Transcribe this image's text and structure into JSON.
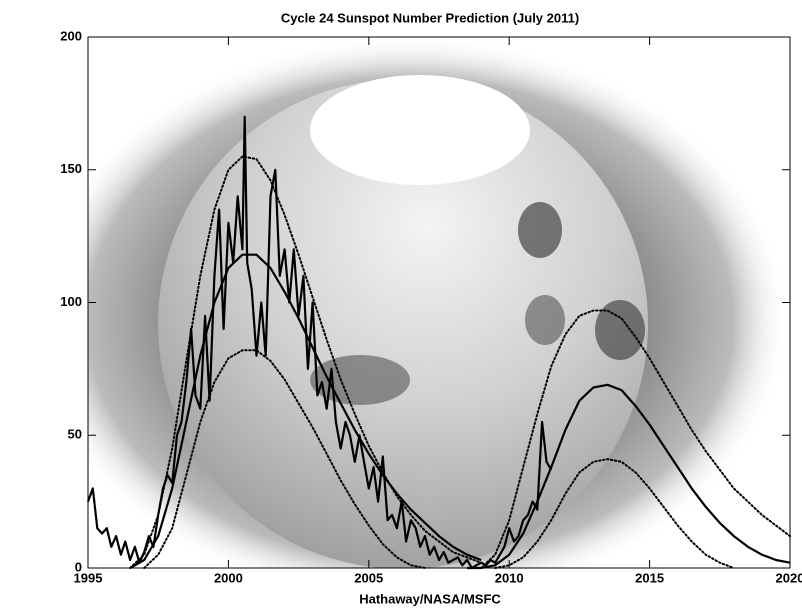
{
  "chart_data": {
    "type": "line",
    "title": "Cycle 24 Sunspot Number Prediction (July 2011)",
    "x_label": "Hathaway/NASA/MSFC",
    "xlim": [
      1995,
      2020
    ],
    "xticks": [
      1995,
      2000,
      2005,
      2010,
      2015,
      2020
    ],
    "ylim": [
      0,
      200
    ],
    "yticks": [
      0,
      50,
      100,
      150,
      200
    ],
    "series": [
      {
        "color": "#000000",
        "style": "solid",
        "x": [
          1995.0,
          1995.17,
          1995.33,
          1995.5,
          1995.67,
          1995.83,
          1996.0,
          1996.17,
          1996.33,
          1996.5,
          1996.67,
          1996.83,
          1997.0,
          1997.17,
          1997.33,
          1997.5,
          1997.67,
          1997.83,
          1998.0,
          1998.17,
          1998.33,
          1998.5,
          1998.67,
          1998.83,
          1999.0,
          1999.17,
          1999.33,
          1999.5,
          1999.67,
          1999.83,
          2000.0,
          2000.17,
          2000.33,
          2000.5,
          2000.58,
          2000.67,
          2000.83,
          2001.0,
          2001.17,
          2001.33,
          2001.5,
          2001.67,
          2001.83,
          2002.0,
          2002.17,
          2002.33,
          2002.5,
          2002.67,
          2002.83,
          2003.0,
          2003.17,
          2003.33,
          2003.5,
          2003.67,
          2003.83,
          2004.0,
          2004.17,
          2004.33,
          2004.5,
          2004.67,
          2004.83,
          2005.0,
          2005.17,
          2005.33,
          2005.5,
          2005.67,
          2005.83,
          2006.0,
          2006.17,
          2006.33,
          2006.5,
          2006.67,
          2006.83,
          2007.0,
          2007.17,
          2007.33,
          2007.5,
          2007.67,
          2007.83,
          2008.0,
          2008.17,
          2008.33,
          2008.5,
          2008.67,
          2008.83,
          2009.0,
          2009.17,
          2009.33,
          2009.5,
          2009.67,
          2009.83,
          2010.0,
          2010.17,
          2010.33,
          2010.5,
          2010.67,
          2010.83,
          2011.0,
          2011.17,
          2011.33,
          2011.5
        ],
        "values": [
          25,
          30,
          15,
          13,
          15,
          8,
          12,
          5,
          10,
          3,
          8,
          2,
          6,
          12,
          8,
          20,
          30,
          35,
          32,
          50,
          55,
          70,
          90,
          65,
          60,
          95,
          63,
          110,
          135,
          90,
          130,
          115,
          140,
          120,
          170,
          115,
          105,
          80,
          100,
          80,
          140,
          150,
          110,
          120,
          100,
          120,
          95,
          110,
          75,
          100,
          65,
          70,
          60,
          75,
          55,
          45,
          55,
          50,
          40,
          50,
          40,
          30,
          38,
          25,
          42,
          18,
          20,
          15,
          25,
          10,
          18,
          15,
          8,
          12,
          5,
          8,
          3,
          6,
          2,
          3,
          4,
          1,
          3,
          0,
          1,
          2,
          1,
          3,
          2,
          5,
          8,
          15,
          10,
          12,
          18,
          20,
          25,
          22,
          55,
          40,
          37
        ]
      },
      {
        "color": "#000000",
        "style": "solid",
        "x": [
          1996.5,
          1997,
          1997.5,
          1998,
          1998.5,
          1999,
          1999.5,
          2000,
          2000.5,
          2001,
          2001.5,
          2002,
          2002.5,
          2003,
          2003.5,
          2004,
          2004.5,
          2005,
          2005.5,
          2006,
          2006.5,
          2007,
          2007.5,
          2008,
          2008.5,
          2009
        ],
        "values": [
          0,
          3,
          12,
          30,
          55,
          80,
          100,
          113,
          118,
          118,
          113,
          104,
          94,
          83,
          72,
          62,
          52,
          43,
          35,
          28,
          22,
          17,
          12,
          8,
          5,
          3
        ]
      },
      {
        "color": "#000000",
        "style": "dotted",
        "x": [
          1996.5,
          1997,
          1997.5,
          1998,
          1998.5,
          1999,
          1999.5,
          2000,
          2000.5,
          2001,
          2001.5,
          2002,
          2002.5,
          2003,
          2003.5,
          2004,
          2004.5,
          2005,
          2005.5,
          2006,
          2006.5,
          2007,
          2007.5,
          2008,
          2008.5,
          2009
        ],
        "values": [
          0,
          5,
          20,
          45,
          78,
          110,
          135,
          150,
          155,
          154,
          146,
          133,
          118,
          102,
          86,
          71,
          58,
          46,
          36,
          27,
          20,
          14,
          10,
          6,
          4,
          2
        ]
      },
      {
        "color": "#000000",
        "style": "dotted",
        "x": [
          1997,
          1997.5,
          1998,
          1998.5,
          1999,
          1999.5,
          2000,
          2000.5,
          2001,
          2001.5,
          2002,
          2002.5,
          2003,
          2003.5,
          2004,
          2004.5,
          2005,
          2005.5,
          2006,
          2006.5,
          2007
        ],
        "values": [
          0,
          5,
          15,
          35,
          55,
          70,
          79,
          82,
          82,
          78,
          71,
          62,
          53,
          43,
          33,
          24,
          16,
          9,
          4,
          1,
          0
        ]
      },
      {
        "color": "#000000",
        "style": "solid",
        "x": [
          2008.5,
          2009,
          2009.5,
          2010,
          2010.5,
          2011,
          2011.5,
          2012,
          2012.5,
          2013,
          2013.5,
          2014,
          2014.5,
          2015,
          2015.5,
          2016,
          2016.5,
          2017,
          2017.5,
          2018,
          2018.5,
          2019,
          2019.5,
          2020
        ],
        "values": [
          0,
          0,
          1,
          5,
          13,
          25,
          38,
          52,
          63,
          68,
          69,
          67,
          61,
          54,
          46,
          38,
          30,
          23,
          17,
          12,
          8,
          5,
          3,
          2
        ]
      },
      {
        "color": "#000000",
        "style": "dotted",
        "x": [
          2009,
          2009.5,
          2010,
          2010.5,
          2011,
          2011.5,
          2012,
          2012.5,
          2013,
          2013.5,
          2014,
          2014.5,
          2015,
          2015.5,
          2016,
          2016.5,
          2017,
          2017.5,
          2018,
          2018.5,
          2019,
          2019.5,
          2020
        ],
        "values": [
          0,
          5,
          18,
          38,
          58,
          76,
          88,
          95,
          97,
          97,
          94,
          87,
          79,
          70,
          61,
          52,
          44,
          37,
          30,
          25,
          20,
          16,
          12
        ]
      },
      {
        "color": "#000000",
        "style": "dotted",
        "x": [
          2009.5,
          2010,
          2010.5,
          2011,
          2011.5,
          2012,
          2012.5,
          2013,
          2013.5,
          2014,
          2014.5,
          2015,
          2015.5,
          2016,
          2016.5,
          2017,
          2017.5,
          2018
        ],
        "values": [
          0,
          1,
          4,
          10,
          18,
          28,
          36,
          40,
          41,
          40,
          36,
          30,
          23,
          16,
          10,
          5,
          2,
          0
        ]
      }
    ]
  }
}
